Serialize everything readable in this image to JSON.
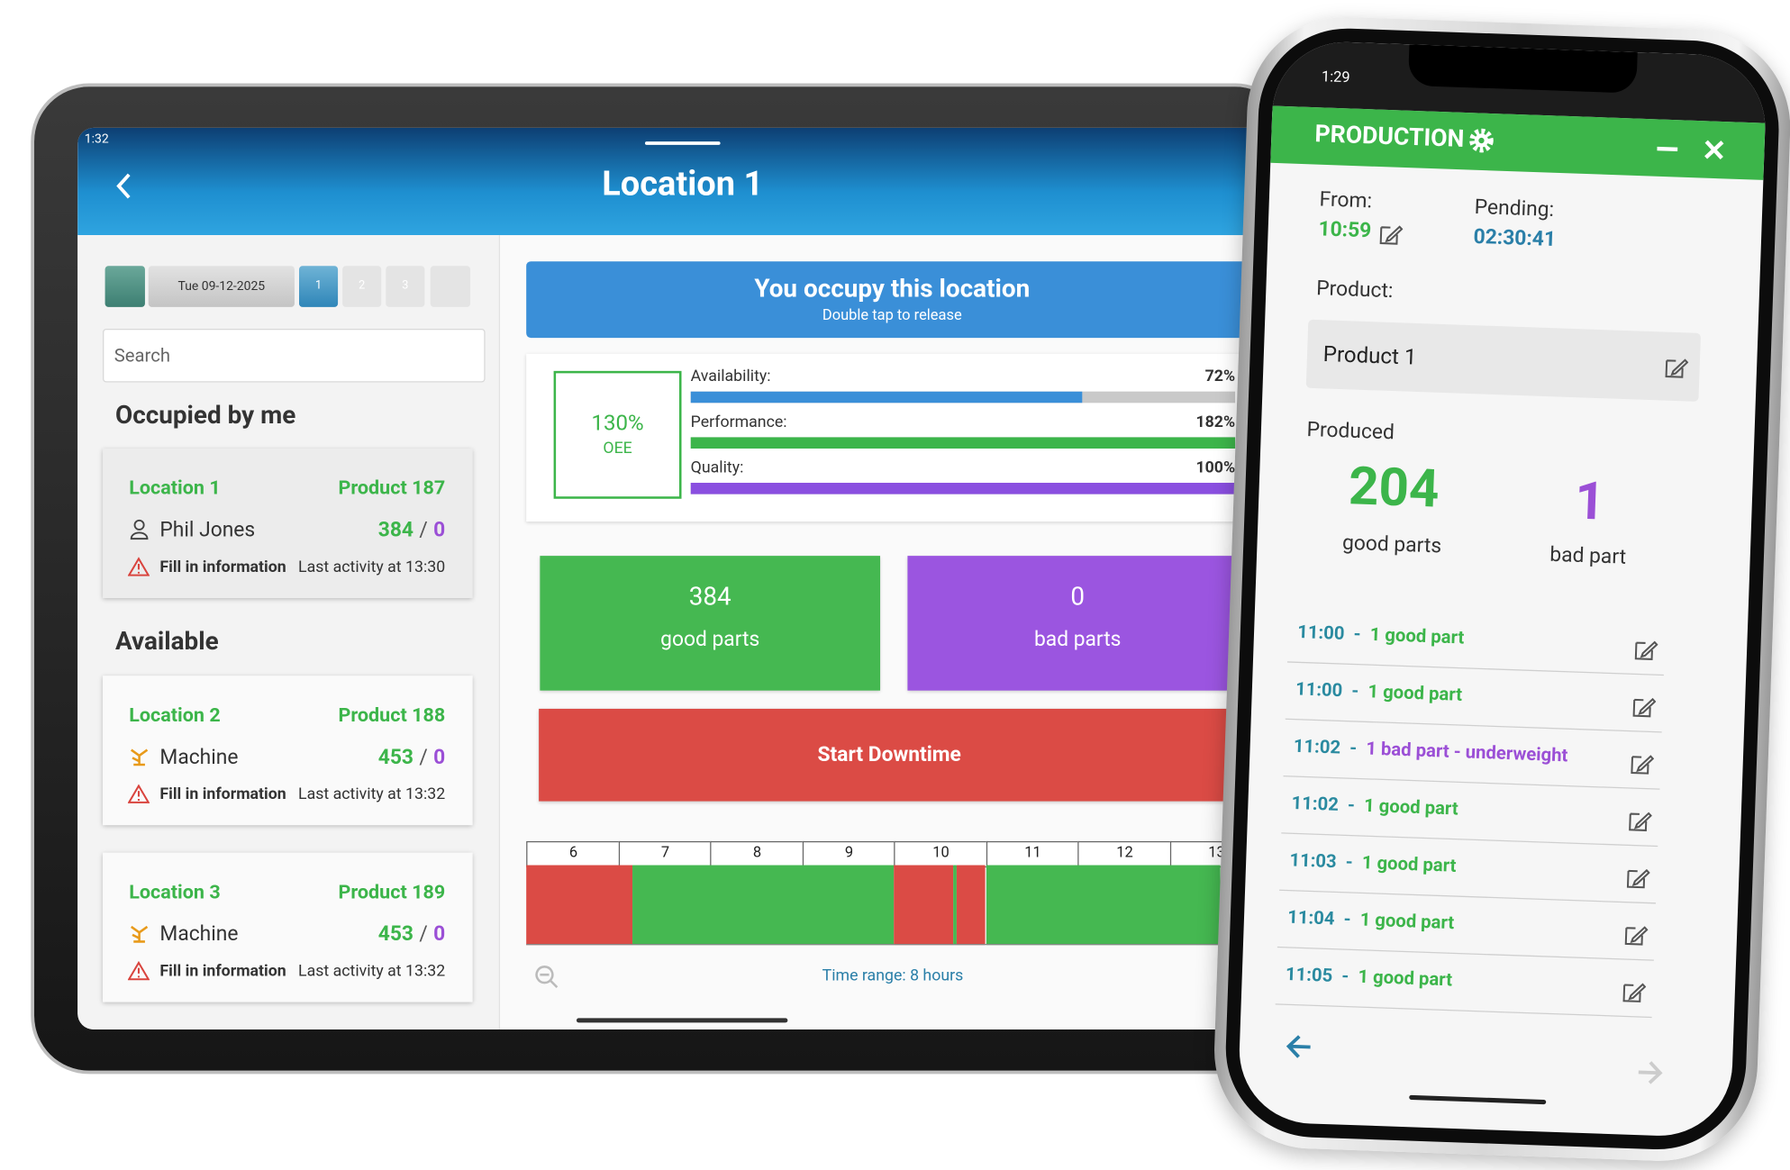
{
  "tablet": {
    "status_time": "1:32",
    "title": "Location 1",
    "date": "Tue 09-12-2025",
    "pages": [
      "1",
      "2",
      "3"
    ],
    "search_placeholder": "Search",
    "occupied_heading": "Occupied by me",
    "available_heading": "Available",
    "count_separator": "/",
    "cards": [
      {
        "location": "Location 1",
        "product": "Product 187",
        "operator": "Phil Jones",
        "good": 384,
        "bad": 0,
        "warning": "Fill in information",
        "activity": "Last activity at 13:30"
      },
      {
        "location": "Location 2",
        "product": "Product 188",
        "operator": "Machine",
        "good": 453,
        "bad": 0,
        "warning": "Fill in information",
        "activity": "Last activity at 13:32"
      },
      {
        "location": "Location 3",
        "product": "Product 189",
        "operator": "Machine",
        "good": 453,
        "bad": 0,
        "warning": "Fill in information",
        "activity": "Last activity at 13:32"
      }
    ],
    "banner": {
      "title": "You occupy this location",
      "subtitle": "Double tap to release"
    },
    "oee": {
      "label": "130%",
      "caption": "OEE"
    },
    "metrics": [
      {
        "name": "Availability:",
        "value": 72,
        "label": "72%",
        "color": "#3a8fd8"
      },
      {
        "name": "Performance:",
        "value": 182,
        "label": "182%",
        "color": "#3cb54a"
      },
      {
        "name": "Quality:",
        "value": 100,
        "label": "100%",
        "color": "#8a4fe0"
      }
    ],
    "counters": [
      {
        "value": 384,
        "label": "good parts",
        "color": "#45b851"
      },
      {
        "value": 0,
        "label": "bad parts",
        "color": "#9b55e0"
      }
    ],
    "downtime_button": "Start Downtime",
    "timeline": {
      "xlim": [
        6,
        14
      ],
      "hours": [
        6,
        7,
        8,
        9,
        10,
        11,
        12,
        13
      ],
      "segments": [
        {
          "start": 6,
          "end": 7.15,
          "color": "#db4b45"
        },
        {
          "start": 7.15,
          "end": 10,
          "color": "#45b851"
        },
        {
          "start": 10,
          "end": 10.65,
          "color": "#db4b45"
        },
        {
          "start": 10.65,
          "end": 10.68,
          "color": "#45b851"
        },
        {
          "start": 10.68,
          "end": 11,
          "color": "#db4b45"
        },
        {
          "start": 11,
          "end": 13.55,
          "color": "#45b851"
        }
      ],
      "range_label": "Time range: 8 hours"
    }
  },
  "phone": {
    "status_time": "1:29",
    "header": "PRODUCTION",
    "from_label": "From:",
    "from_time": "10:59",
    "pending_label": "Pending:",
    "pending_time": "02:30:41",
    "product_label": "Product:",
    "product": "Product 1",
    "produced_label": "Produced",
    "good": 204,
    "good_label": "good parts",
    "bad": 1,
    "bad_label": "bad part",
    "log_separator": "-",
    "log": [
      {
        "time": "11:00",
        "text": "1 good part",
        "kind": "good"
      },
      {
        "time": "11:00",
        "text": "1 good part",
        "kind": "good"
      },
      {
        "time": "11:02",
        "text": "1 bad part",
        "note": "- underweight",
        "kind": "bad"
      },
      {
        "time": "11:02",
        "text": "1 good part",
        "kind": "good"
      },
      {
        "time": "11:03",
        "text": "1 good part",
        "kind": "good"
      },
      {
        "time": "11:04",
        "text": "1 good part",
        "kind": "good"
      },
      {
        "time": "11:05",
        "text": "1 good part",
        "kind": "good"
      }
    ]
  }
}
